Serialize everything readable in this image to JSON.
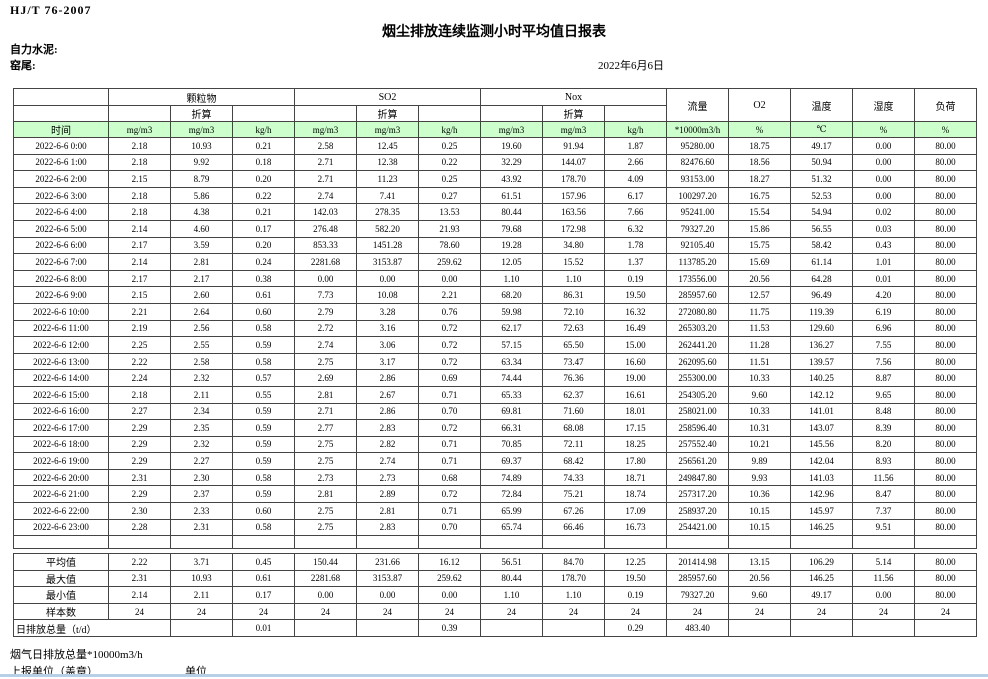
{
  "page": {
    "standard_code": "HJ/T  76-2007",
    "title": "烟尘排放连续监测小时平均值日报表",
    "company": "自力水泥:",
    "stack": "窑尾:",
    "date": "2022年6月6日"
  },
  "table": {
    "time_header": "时间",
    "groups": [
      {
        "label": "颗粒物",
        "sub": "折算"
      },
      {
        "label": "SO2",
        "sub": "折算"
      },
      {
        "label": "Nox",
        "sub": "折算"
      }
    ],
    "scalar_columns": [
      "流量",
      "O2",
      "温度",
      "湿度",
      "负荷"
    ],
    "units": [
      "mg/m3",
      "mg/m3",
      "kg/h",
      "mg/m3",
      "mg/m3",
      "kg/h",
      "mg/m3",
      "mg/m3",
      "kg/h",
      "*10000m3/h",
      "%",
      "℃",
      "%",
      "%"
    ],
    "rows": [
      {
        "time": "2022-6-6 0:00",
        "values": [
          "2.18",
          "10.93",
          "0.21",
          "2.58",
          "12.45",
          "0.25",
          "19.60",
          "91.94",
          "1.87",
          "95280.00",
          "18.75",
          "49.17",
          "0.00",
          "80.00"
        ]
      },
      {
        "time": "2022-6-6 1:00",
        "values": [
          "2.18",
          "9.92",
          "0.18",
          "2.71",
          "12.38",
          "0.22",
          "32.29",
          "144.07",
          "2.66",
          "82476.60",
          "18.56",
          "50.94",
          "0.00",
          "80.00"
        ]
      },
      {
        "time": "2022-6-6 2:00",
        "values": [
          "2.15",
          "8.79",
          "0.20",
          "2.71",
          "11.23",
          "0.25",
          "43.92",
          "178.70",
          "4.09",
          "93153.00",
          "18.27",
          "51.32",
          "0.00",
          "80.00"
        ]
      },
      {
        "time": "2022-6-6 3:00",
        "values": [
          "2.18",
          "5.86",
          "0.22",
          "2.74",
          "7.41",
          "0.27",
          "61.51",
          "157.96",
          "6.17",
          "100297.20",
          "16.75",
          "52.53",
          "0.00",
          "80.00"
        ]
      },
      {
        "time": "2022-6-6 4:00",
        "values": [
          "2.18",
          "4.38",
          "0.21",
          "142.03",
          "278.35",
          "13.53",
          "80.44",
          "163.56",
          "7.66",
          "95241.00",
          "15.54",
          "54.94",
          "0.02",
          "80.00"
        ]
      },
      {
        "time": "2022-6-6 5:00",
        "values": [
          "2.14",
          "4.60",
          "0.17",
          "276.48",
          "582.20",
          "21.93",
          "79.68",
          "172.98",
          "6.32",
          "79327.20",
          "15.86",
          "56.55",
          "0.03",
          "80.00"
        ]
      },
      {
        "time": "2022-6-6 6:00",
        "values": [
          "2.17",
          "3.59",
          "0.20",
          "853.33",
          "1451.28",
          "78.60",
          "19.28",
          "34.80",
          "1.78",
          "92105.40",
          "15.75",
          "58.42",
          "0.43",
          "80.00"
        ]
      },
      {
        "time": "2022-6-6 7:00",
        "values": [
          "2.14",
          "2.81",
          "0.24",
          "2281.68",
          "3153.87",
          "259.62",
          "12.05",
          "15.52",
          "1.37",
          "113785.20",
          "15.69",
          "61.14",
          "1.01",
          "80.00"
        ]
      },
      {
        "time": "2022-6-6 8:00",
        "values": [
          "2.17",
          "2.17",
          "0.38",
          "0.00",
          "0.00",
          "0.00",
          "1.10",
          "1.10",
          "0.19",
          "173556.00",
          "20.56",
          "64.28",
          "0.01",
          "80.00"
        ]
      },
      {
        "time": "2022-6-6 9:00",
        "values": [
          "2.15",
          "2.60",
          "0.61",
          "7.73",
          "10.08",
          "2.21",
          "68.20",
          "86.31",
          "19.50",
          "285957.60",
          "12.57",
          "96.49",
          "4.20",
          "80.00"
        ]
      },
      {
        "time": "2022-6-6 10:00",
        "values": [
          "2.21",
          "2.64",
          "0.60",
          "2.79",
          "3.28",
          "0.76",
          "59.98",
          "72.10",
          "16.32",
          "272080.80",
          "11.75",
          "119.39",
          "6.19",
          "80.00"
        ]
      },
      {
        "time": "2022-6-6 11:00",
        "values": [
          "2.19",
          "2.56",
          "0.58",
          "2.72",
          "3.16",
          "0.72",
          "62.17",
          "72.63",
          "16.49",
          "265303.20",
          "11.53",
          "129.60",
          "6.96",
          "80.00"
        ]
      },
      {
        "time": "2022-6-6 12:00",
        "values": [
          "2.25",
          "2.55",
          "0.59",
          "2.74",
          "3.06",
          "0.72",
          "57.15",
          "65.50",
          "15.00",
          "262441.20",
          "11.28",
          "136.27",
          "7.55",
          "80.00"
        ]
      },
      {
        "time": "2022-6-6 13:00",
        "values": [
          "2.22",
          "2.58",
          "0.58",
          "2.75",
          "3.17",
          "0.72",
          "63.34",
          "73.47",
          "16.60",
          "262095.60",
          "11.51",
          "139.57",
          "7.56",
          "80.00"
        ]
      },
      {
        "time": "2022-6-6 14:00",
        "values": [
          "2.24",
          "2.32",
          "0.57",
          "2.69",
          "2.86",
          "0.69",
          "74.44",
          "76.36",
          "19.00",
          "255300.00",
          "10.33",
          "140.25",
          "8.87",
          "80.00"
        ]
      },
      {
        "time": "2022-6-6 15:00",
        "values": [
          "2.18",
          "2.11",
          "0.55",
          "2.81",
          "2.67",
          "0.71",
          "65.33",
          "62.37",
          "16.61",
          "254305.20",
          "9.60",
          "142.12",
          "9.65",
          "80.00"
        ]
      },
      {
        "time": "2022-6-6 16:00",
        "values": [
          "2.27",
          "2.34",
          "0.59",
          "2.71",
          "2.86",
          "0.70",
          "69.81",
          "71.60",
          "18.01",
          "258021.00",
          "10.33",
          "141.01",
          "8.48",
          "80.00"
        ]
      },
      {
        "time": "2022-6-6 17:00",
        "values": [
          "2.29",
          "2.35",
          "0.59",
          "2.77",
          "2.83",
          "0.72",
          "66.31",
          "68.08",
          "17.15",
          "258596.40",
          "10.31",
          "143.07",
          "8.39",
          "80.00"
        ]
      },
      {
        "time": "2022-6-6 18:00",
        "values": [
          "2.29",
          "2.32",
          "0.59",
          "2.75",
          "2.82",
          "0.71",
          "70.85",
          "72.11",
          "18.25",
          "257552.40",
          "10.21",
          "145.56",
          "8.20",
          "80.00"
        ]
      },
      {
        "time": "2022-6-6 19:00",
        "values": [
          "2.29",
          "2.27",
          "0.59",
          "2.75",
          "2.74",
          "0.71",
          "69.37",
          "68.42",
          "17.80",
          "256561.20",
          "9.89",
          "142.04",
          "8.93",
          "80.00"
        ]
      },
      {
        "time": "2022-6-6 20:00",
        "values": [
          "2.31",
          "2.30",
          "0.58",
          "2.73",
          "2.73",
          "0.68",
          "74.89",
          "74.33",
          "18.71",
          "249847.80",
          "9.93",
          "141.03",
          "11.56",
          "80.00"
        ]
      },
      {
        "time": "2022-6-6 21:00",
        "values": [
          "2.29",
          "2.37",
          "0.59",
          "2.81",
          "2.89",
          "0.72",
          "72.84",
          "75.21",
          "18.74",
          "257317.20",
          "10.36",
          "142.96",
          "8.47",
          "80.00"
        ]
      },
      {
        "time": "2022-6-6 22:00",
        "values": [
          "2.30",
          "2.33",
          "0.60",
          "2.75",
          "2.81",
          "0.71",
          "65.99",
          "67.26",
          "17.09",
          "258937.20",
          "10.15",
          "145.97",
          "7.37",
          "80.00"
        ]
      },
      {
        "time": "2022-6-6 23:00",
        "values": [
          "2.28",
          "2.31",
          "0.58",
          "2.75",
          "2.83",
          "0.70",
          "65.74",
          "66.46",
          "16.73",
          "254421.00",
          "10.15",
          "146.25",
          "9.51",
          "80.00"
        ]
      }
    ],
    "summary_rows": [
      {
        "label": "平均值",
        "values": [
          "2.22",
          "3.71",
          "0.45",
          "150.44",
          "231.66",
          "16.12",
          "56.51",
          "84.70",
          "12.25",
          "201414.98",
          "13.15",
          "106.29",
          "5.14",
          "80.00"
        ]
      },
      {
        "label": "最大值",
        "values": [
          "2.31",
          "10.93",
          "0.61",
          "2281.68",
          "3153.87",
          "259.62",
          "80.44",
          "178.70",
          "19.50",
          "285957.60",
          "20.56",
          "146.25",
          "11.56",
          "80.00"
        ]
      },
      {
        "label": "最小值",
        "values": [
          "2.14",
          "2.11",
          "0.17",
          "0.00",
          "0.00",
          "0.00",
          "1.10",
          "1.10",
          "0.19",
          "79327.20",
          "9.60",
          "49.17",
          "0.00",
          "80.00"
        ]
      },
      {
        "label": "样本数",
        "values": [
          "24",
          "24",
          "24",
          "24",
          "24",
          "24",
          "24",
          "24",
          "24",
          "24",
          "24",
          "24",
          "24",
          "24"
        ]
      }
    ],
    "daily_total_row": {
      "label": "日排放总量（t/d）",
      "values": [
        "",
        "0.01",
        "",
        "",
        "0.39",
        "",
        "",
        "0.29",
        "483.40",
        "",
        "",
        "",
        ""
      ]
    }
  },
  "footer": {
    "flue_gas_daily_total": "烟气日排放总量*10000m3/h",
    "reporting_unit_label": "上报单位（盖章）",
    "unit_label": "单位"
  }
}
